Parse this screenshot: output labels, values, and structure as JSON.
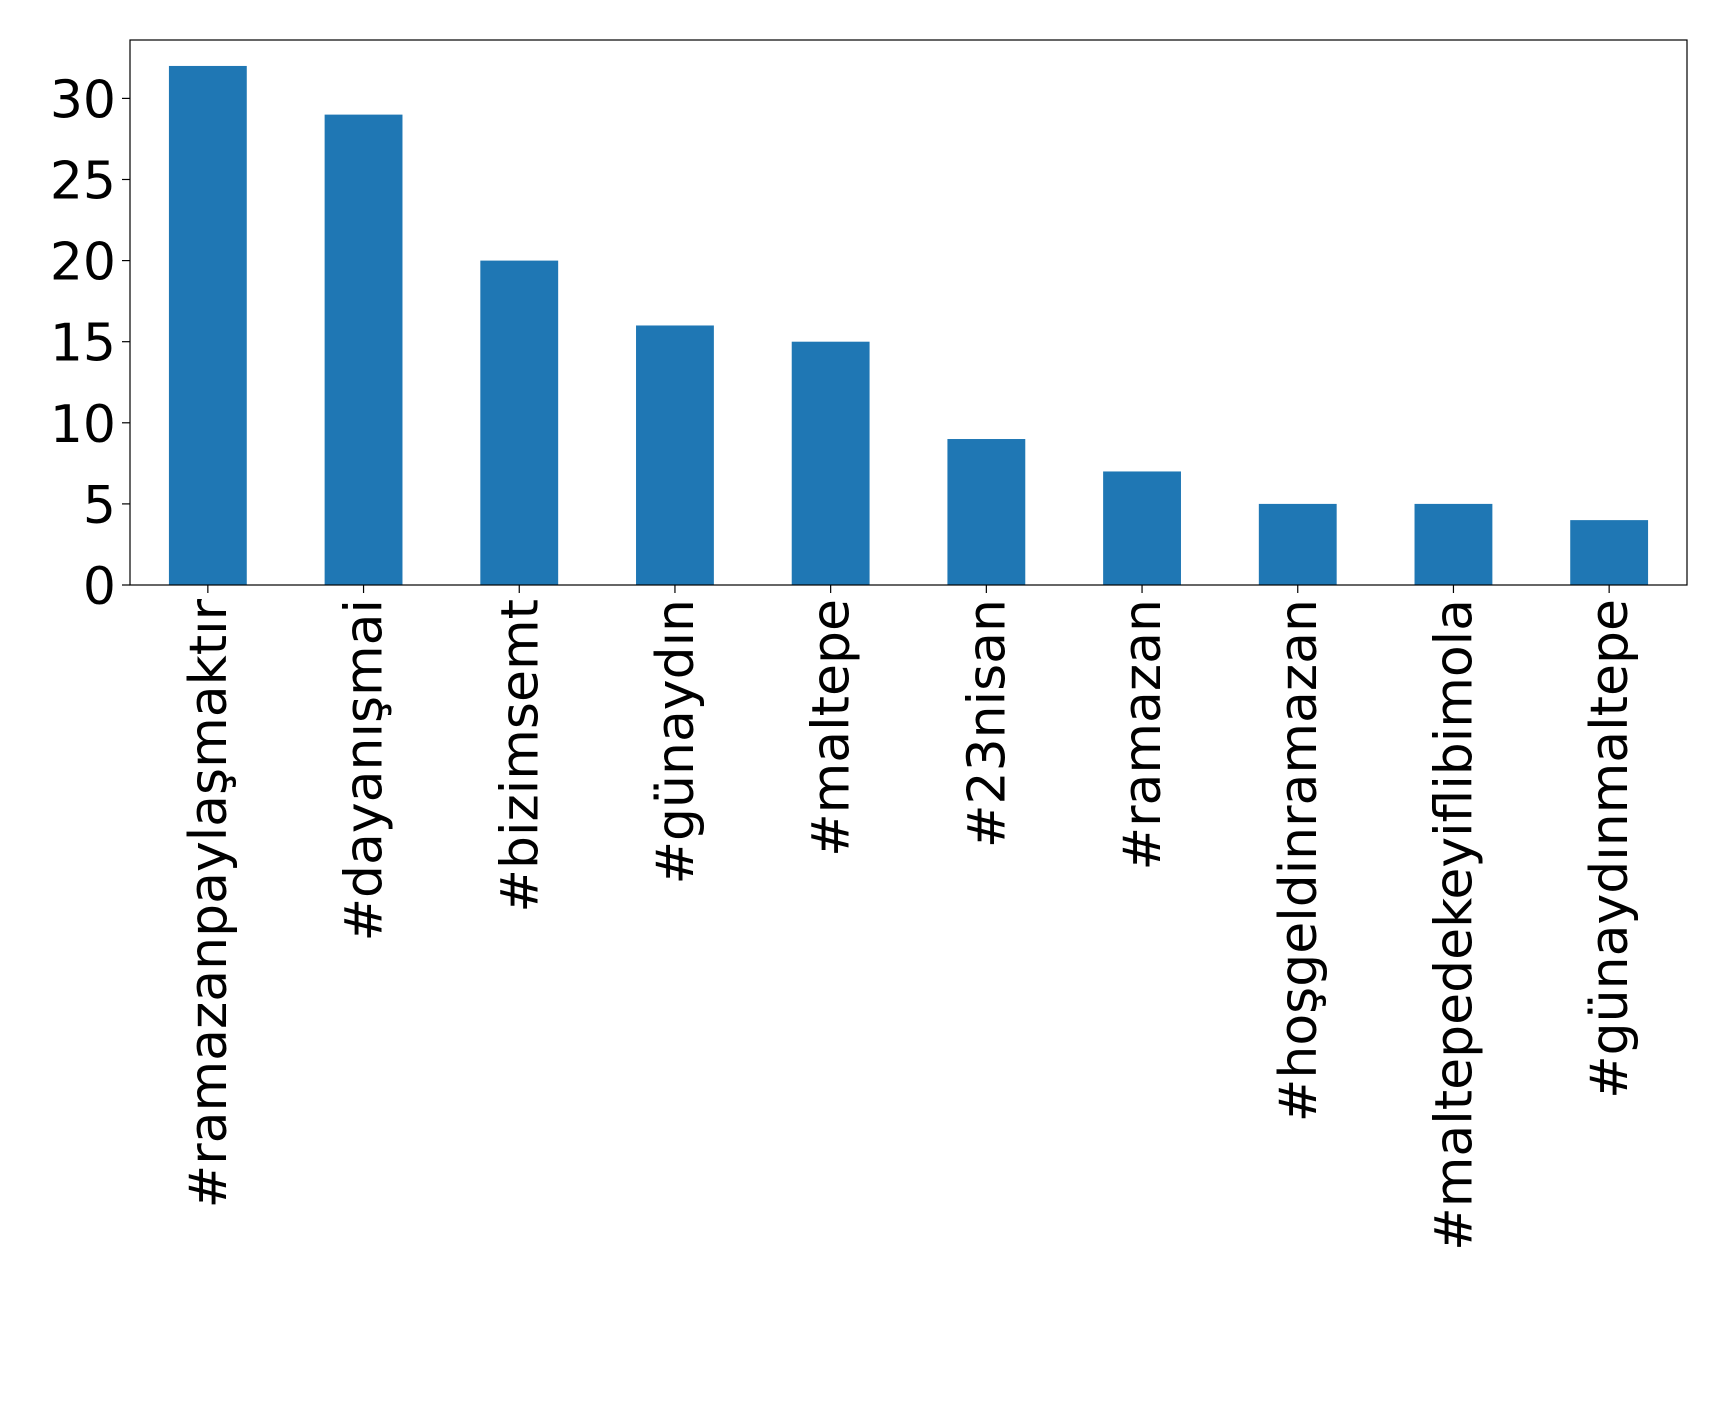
{
  "chart_data": {
    "type": "bar",
    "categories": [
      "#ramazanpaylaşmaktır",
      "#dayanışmai",
      "#bizimsemt",
      "#günaydın",
      "#maltepe",
      "#23nisan",
      "#ramazan",
      "#hoşgeldinramazan",
      "#maltepedekeyiflibimola",
      "#günaydınmaltepe"
    ],
    "values": [
      32,
      29,
      20,
      16,
      15,
      9,
      7,
      5,
      5,
      4
    ],
    "color": "#1f77b4",
    "ylim": [
      0,
      33.6
    ],
    "yticks": [
      0,
      5,
      10,
      15,
      20,
      25,
      30
    ],
    "grid": false
  }
}
